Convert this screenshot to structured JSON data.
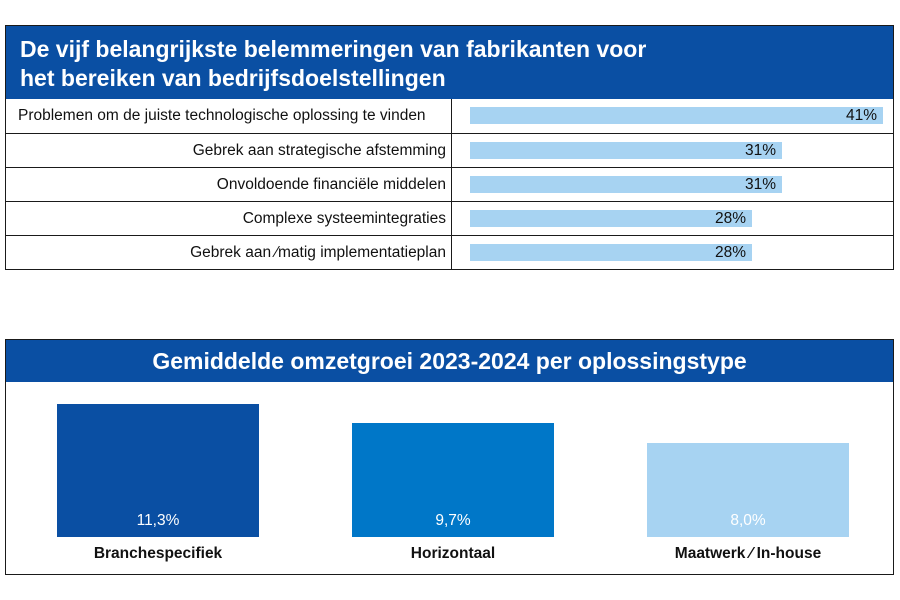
{
  "chart_data": [
    {
      "type": "bar",
      "orientation": "horizontal",
      "title_lines": [
        "De vijf belangrijkste belemmeringen van fabrikanten voor",
        "het bereiken van bedrijfsdoelstellingen"
      ],
      "categories": [
        "Problemen om de juiste technologische oplossing te vinden",
        "Gebrek aan strategische afstemming",
        "Onvoldoende financiële middelen",
        "Complexe systeemintegraties",
        "Gebrek aan ⁄matig implementatieplan"
      ],
      "values": [
        41,
        31,
        31,
        28,
        28
      ],
      "value_labels": [
        "41%",
        "31%",
        "31%",
        "28%",
        "28%"
      ],
      "xlim": [
        0,
        41
      ],
      "bar_color": "#a7d3f2",
      "header_color": "#0a4fa3"
    },
    {
      "type": "bar",
      "orientation": "vertical",
      "title": "Gemiddelde omzetgroei 2023-2024 per oplossingstype",
      "categories": [
        "Branchespecifiek",
        "Horizontaal",
        "Maatwerk ⁄ In-house"
      ],
      "values": [
        11.3,
        9.7,
        8.0
      ],
      "value_labels": [
        "11,3%",
        "9,7%",
        "8,0%"
      ],
      "colors": [
        "#0a4fa3",
        "#0077c8",
        "#a7d3f2"
      ],
      "header_color": "#0a4fa3"
    }
  ]
}
